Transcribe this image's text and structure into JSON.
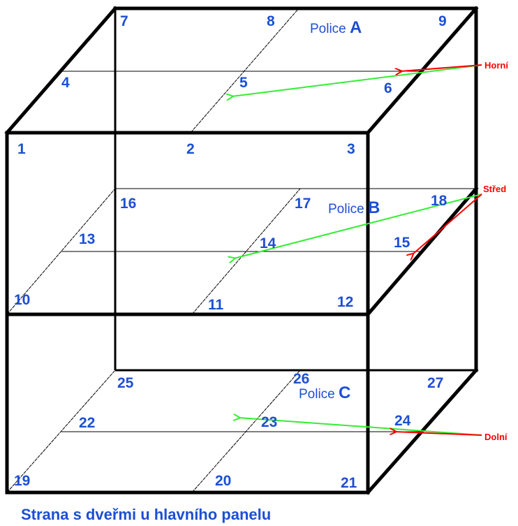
{
  "positions": [
    1,
    2,
    3,
    4,
    5,
    6,
    7,
    8,
    9,
    10,
    11,
    12,
    13,
    14,
    15,
    16,
    17,
    18,
    19,
    20,
    21,
    22,
    23,
    24,
    25,
    26,
    27
  ],
  "shelves": [
    {
      "label": "Police",
      "letter": "A"
    },
    {
      "label": "Police",
      "letter": "B"
    },
    {
      "label": "Police",
      "letter": "C"
    }
  ],
  "levels": [
    "Horní",
    "Střed",
    "Dolní"
  ],
  "caption": "Strana s dveřmi u hlavního panelu"
}
